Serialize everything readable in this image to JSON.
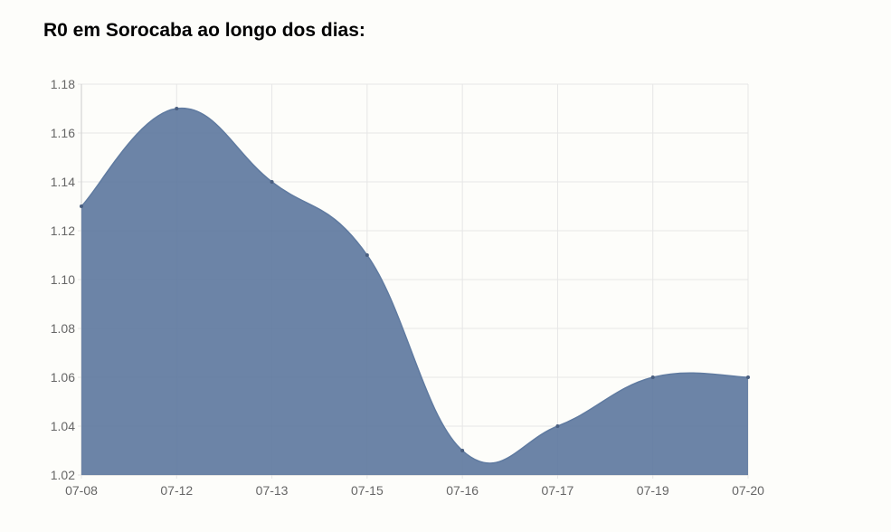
{
  "page": {
    "title": "R0 em Sorocaba ao longo dos dias:"
  },
  "colors": {
    "area_fill": "#5f7aa0",
    "grid": "#e6e6e6",
    "axis": "#cccccc",
    "tick_text": "#666666",
    "point": "#4a5f80"
  },
  "chart_data": {
    "type": "area",
    "title": "",
    "xlabel": "",
    "ylabel": "",
    "categories": [
      "07-08",
      "07-12",
      "07-13",
      "07-15",
      "07-16",
      "07-17",
      "07-19",
      "07-20"
    ],
    "series": [
      {
        "values": [
          1.13,
          1.17,
          1.14,
          1.11,
          1.03,
          1.04,
          1.06,
          1.06
        ]
      }
    ],
    "ylim": [
      1.02,
      1.18
    ],
    "yticks": [
      "1.18",
      "1.16",
      "1.14",
      "1.12",
      "1.10",
      "1.08",
      "1.06",
      "1.04",
      "1.02"
    ],
    "grid": true,
    "curve": "smooth"
  }
}
